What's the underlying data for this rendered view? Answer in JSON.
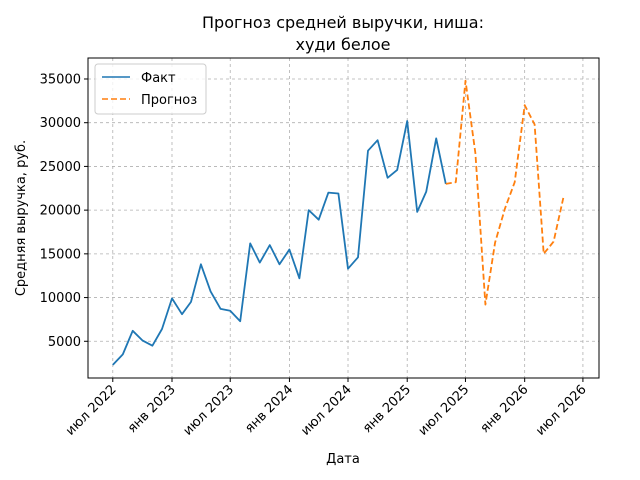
{
  "chart_data": {
    "type": "line",
    "title": [
      "Прогноз средней выручки, ниша:",
      "худи белое"
    ],
    "xlabel": "Дата",
    "ylabel": "Средняя выручка, руб.",
    "grid": true,
    "legend_position": "top-left",
    "colors": {
      "actual": "#1f77b4",
      "forecast": "#ff7f0e"
    },
    "xlim": [
      "2022-04-15",
      "2026-08-20"
    ],
    "ylim": [
      800,
      37400
    ],
    "x_ticks": [
      {
        "date": "2022-07-01",
        "label": "июл 2022"
      },
      {
        "date": "2023-01-01",
        "label": "янв 2023"
      },
      {
        "date": "2023-07-01",
        "label": "июл 2023"
      },
      {
        "date": "2024-01-01",
        "label": "янв 2024"
      },
      {
        "date": "2024-07-01",
        "label": "июл 2024"
      },
      {
        "date": "2025-01-01",
        "label": "янв 2025"
      },
      {
        "date": "2025-07-01",
        "label": "июл 2025"
      },
      {
        "date": "2026-01-01",
        "label": "янв 2026"
      },
      {
        "date": "2026-07-01",
        "label": "июл 2026"
      }
    ],
    "y_ticks": [
      5000,
      10000,
      15000,
      20000,
      25000,
      30000,
      35000
    ],
    "series": [
      {
        "name": "Факт",
        "style": "solid",
        "x": [
          "2022-07-01",
          "2022-08-01",
          "2022-09-01",
          "2022-10-01",
          "2022-11-01",
          "2022-12-01",
          "2023-01-01",
          "2023-02-01",
          "2023-03-01",
          "2023-04-01",
          "2023-05-01",
          "2023-06-01",
          "2023-07-01",
          "2023-08-01",
          "2023-09-01",
          "2023-10-01",
          "2023-11-01",
          "2023-12-01",
          "2024-01-01",
          "2024-02-01",
          "2024-03-01",
          "2024-04-01",
          "2024-05-01",
          "2024-06-01",
          "2024-07-01",
          "2024-08-01",
          "2024-09-01",
          "2024-10-01",
          "2024-11-01",
          "2024-12-01",
          "2025-01-01",
          "2025-02-01",
          "2025-03-01",
          "2025-04-01",
          "2025-05-01"
        ],
        "y": [
          2300,
          3500,
          6200,
          5100,
          4500,
          6400,
          9900,
          8100,
          9500,
          13800,
          10700,
          8700,
          8500,
          7300,
          16200,
          14000,
          16000,
          13800,
          15500,
          12200,
          20000,
          18900,
          22000,
          21900,
          13300,
          14600,
          26800,
          28000,
          23700,
          24600,
          30200,
          19800,
          22100,
          28200,
          23000
        ]
      },
      {
        "name": "Прогноз",
        "style": "dashed",
        "x": [
          "2025-05-01",
          "2025-06-01",
          "2025-07-01",
          "2025-08-01",
          "2025-09-01",
          "2025-10-01",
          "2025-11-01",
          "2025-12-01",
          "2026-01-01",
          "2026-02-01",
          "2026-03-01",
          "2026-04-01",
          "2026-05-01"
        ],
        "y": [
          23000,
          23200,
          34800,
          26500,
          9200,
          16300,
          20200,
          23200,
          32000,
          29800,
          15000,
          16400,
          21400
        ]
      }
    ]
  }
}
